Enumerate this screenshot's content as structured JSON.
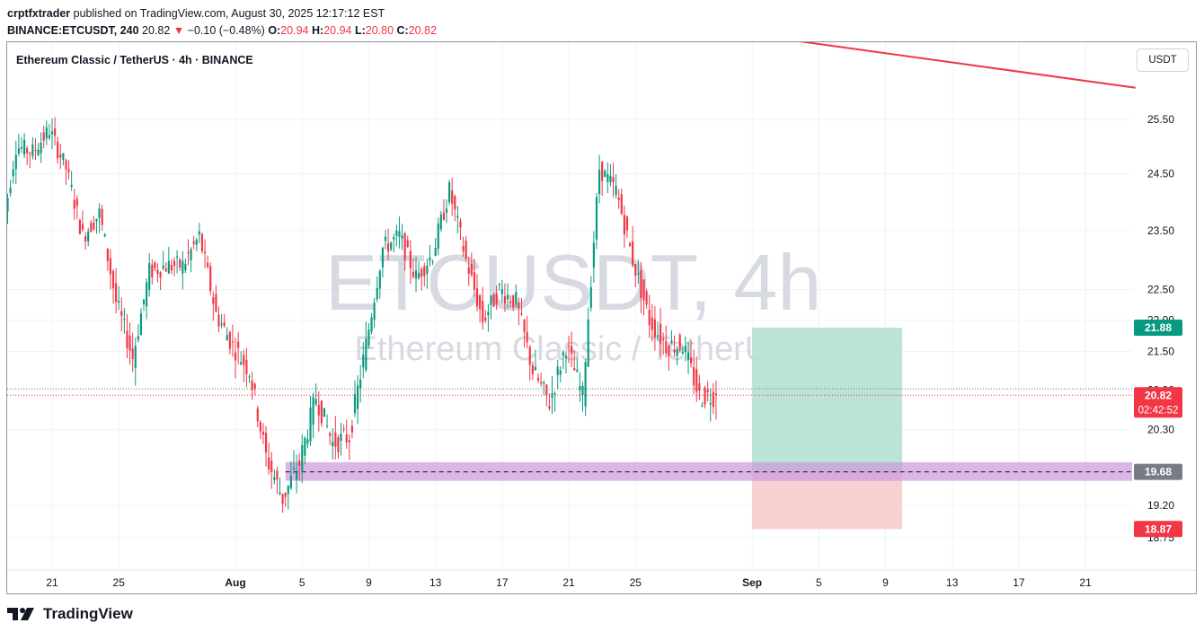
{
  "header": {
    "author": "crptfxtrader",
    "published_text": "published on TradingView.com, August 30, 2025 12:17:12 EST",
    "symbol": "BINANCE:ETCUSDT, 240",
    "last": "20.82",
    "change": "−0.10 (−0.48%)",
    "o_label": "O:",
    "o_value": "20.94",
    "h_label": "H:",
    "h_value": "20.94",
    "l_label": "L:",
    "l_value": "20.80",
    "c_label": "C:",
    "c_value": "20.82"
  },
  "chart_title": "Ethereum Classic / TetherUS · 4h · BINANCE",
  "currency_button": "USDT",
  "watermark": {
    "main": "ETCUSDT, 4h",
    "sub": "Ethereum Classic / TetherUS"
  },
  "footer": {
    "brand": "TradingView"
  },
  "colors": {
    "up": "#089981",
    "down": "#f23645",
    "trendline": "#f23645",
    "profit_zone": "#b7e2d4",
    "loss_zone": "#f9cdd0",
    "support_band": "#cc99dd",
    "grid": "#f0f3fa",
    "target_tag": "#089981",
    "stop_tag": "#f23645",
    "entry_tag": "#787b86"
  },
  "chart_data": {
    "type": "candlestick",
    "interval": "4h",
    "y_axis": {
      "ticks": [
        25.5,
        24.5,
        23.5,
        22.5,
        22.0,
        21.5,
        20.9,
        20.3,
        19.2,
        18.75
      ],
      "range": [
        18.3,
        26.5
      ],
      "scale": "log"
    },
    "x_axis": {
      "ticks": [
        "21",
        "25",
        "Aug",
        "5",
        "9",
        "13",
        "17",
        "21",
        "25",
        "Sep",
        "5",
        "9",
        "13",
        "17",
        "21"
      ]
    },
    "anchors": [
      [
        "Jul 18",
        23.2
      ],
      [
        "Jul 19",
        25.0
      ],
      [
        "Jul 20",
        24.9
      ],
      [
        "Jul 21",
        25.3
      ],
      [
        "Jul 22",
        24.6
      ],
      [
        "Jul 23",
        23.4
      ],
      [
        "Jul 24",
        23.8
      ],
      [
        "Jul 25",
        22.3
      ],
      [
        "Jul 26",
        21.4
      ],
      [
        "Jul 27",
        22.8
      ],
      [
        "Jul 28",
        22.9
      ],
      [
        "Jul 29",
        22.9
      ],
      [
        "Jul 30",
        23.4
      ],
      [
        "Jul 31",
        22.1
      ],
      [
        "Aug 1",
        21.6
      ],
      [
        "Aug 2",
        21.2
      ],
      [
        "Aug 3",
        19.9
      ],
      [
        "Aug 4",
        19.3
      ],
      [
        "Aug 5",
        19.8
      ],
      [
        "Aug 6",
        20.8
      ],
      [
        "Aug 7",
        20.1
      ],
      [
        "Aug 8",
        20.2
      ],
      [
        "Aug 9",
        21.6
      ],
      [
        "Aug 10",
        23.2
      ],
      [
        "Aug 11",
        23.4
      ],
      [
        "Aug 12",
        22.7
      ],
      [
        "Aug 13",
        23.1
      ],
      [
        "Aug 14",
        24.2
      ],
      [
        "Aug 15",
        23.0
      ],
      [
        "Aug 16",
        22.0
      ],
      [
        "Aug 17",
        22.5
      ],
      [
        "Aug 18",
        22.3
      ],
      [
        "Aug 19",
        21.2
      ],
      [
        "Aug 20",
        20.7
      ],
      [
        "Aug 21",
        21.6
      ],
      [
        "Aug 22",
        20.8
      ],
      [
        "Aug 23",
        24.6
      ],
      [
        "Aug 24",
        24.2
      ],
      [
        "Aug 25",
        23.0
      ],
      [
        "Aug 26",
        22.0
      ],
      [
        "Aug 27",
        21.6
      ],
      [
        "Aug 28",
        21.6
      ],
      [
        "Aug 29",
        20.8
      ],
      [
        "Aug 30",
        20.82
      ]
    ],
    "current_price": 20.82,
    "countdown": "02:42:52",
    "position": {
      "type": "long",
      "entry": 19.68,
      "target": 21.88,
      "stop": 18.87,
      "start": "Sep 1",
      "end": "Sep 10"
    },
    "support_zone": {
      "low": 19.55,
      "high": 19.82,
      "start": "Aug 4"
    },
    "trendline": [
      {
        "date": "Aug 22",
        "price": 27.6
      },
      {
        "date": "Sep 24",
        "price": 26.1
      }
    ]
  }
}
